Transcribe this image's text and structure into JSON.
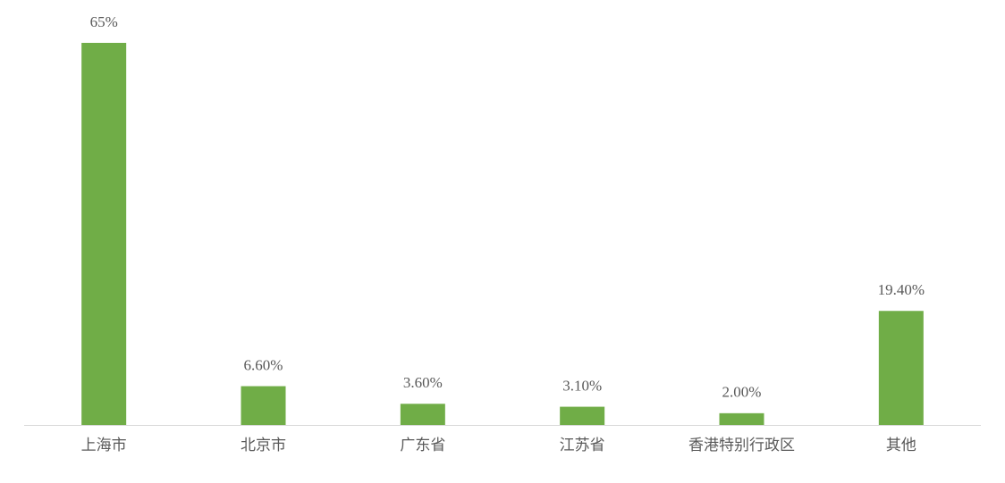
{
  "chart_data": {
    "type": "bar",
    "categories": [
      "上海市",
      "北京市",
      "广东省",
      "江苏省",
      "香港特别行政区",
      "其他"
    ],
    "values": [
      65,
      6.6,
      3.6,
      3.1,
      2.0,
      19.4
    ],
    "value_labels": [
      "65%",
      "6.60%",
      "3.60%",
      "3.10%",
      "2.00%",
      "19.40%"
    ],
    "color": "#70ad47"
  }
}
